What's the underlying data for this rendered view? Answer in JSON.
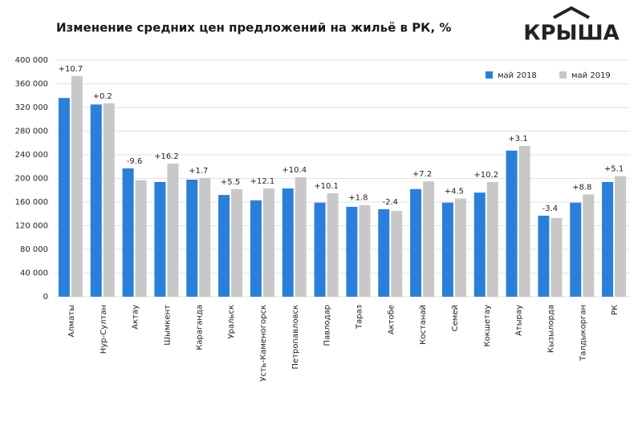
{
  "chart_data": {
    "type": "bar",
    "title": "Изменение средних цен предложений на жильё в РК, %",
    "logo": "КРЫША",
    "categories": [
      "Алматы",
      "Нур-Султан",
      "Актау",
      "Шымкент",
      "Караганда",
      "Уральск",
      "Усть-Каменогорск",
      "Петропавловск",
      "Павлодар",
      "Тараз",
      "Актобе",
      "Костанай",
      "Семей",
      "Кокшетау",
      "Атырау",
      "Кызылорда",
      "Талдыкорган",
      "РК"
    ],
    "series": [
      {
        "name": "май 2018",
        "color": "#2b7fd9",
        "values": [
          336000,
          325000,
          217000,
          194000,
          198000,
          172000,
          163000,
          183000,
          159000,
          152000,
          148000,
          182000,
          159000,
          176000,
          247000,
          137000,
          159000,
          194000
        ]
      },
      {
        "name": "май 2019",
        "color": "#c8c8c8",
        "values": [
          373000,
          327000,
          197000,
          225000,
          201000,
          182000,
          183000,
          202000,
          175000,
          155000,
          145000,
          195000,
          166000,
          194000,
          255000,
          133000,
          173000,
          204000
        ]
      }
    ],
    "annotations": [
      {
        "text": "+10.7",
        "color": "#2a9d3c"
      },
      {
        "text": "+0.2",
        "color": "#2a9d3c"
      },
      {
        "text": "-9.6",
        "color": "#e02020"
      },
      {
        "text": "+16.2",
        "color": "#2a9d3c"
      },
      {
        "text": "+1.7",
        "color": "#2a9d3c"
      },
      {
        "text": "+5.5",
        "color": "#2a9d3c"
      },
      {
        "text": "+12.1",
        "color": "#2a9d3c"
      },
      {
        "text": "+10.4",
        "color": "#2a9d3c"
      },
      {
        "text": "+10.1",
        "color": "#2a9d3c"
      },
      {
        "text": "+1.8",
        "color": "#2a9d3c"
      },
      {
        "text": "-2.4",
        "color": "#e02020"
      },
      {
        "text": "+7.2",
        "color": "#2a9d3c"
      },
      {
        "text": "+4.5",
        "color": "#2a9d3c"
      },
      {
        "text": "+10.2",
        "color": "#2a9d3c"
      },
      {
        "text": "+3.1",
        "color": "#2a9d3c"
      },
      {
        "text": "-3.4",
        "color": "#e02020"
      },
      {
        "text": "+8.8",
        "color": "#2a9d3c"
      },
      {
        "text": "+5.1",
        "color": "#2a9d3c"
      }
    ],
    "ylim": [
      0,
      400000
    ],
    "yticks": [
      0,
      {
        "value": 40000,
        "label": "40 000"
      },
      {
        "value": 80000,
        "label": "80 000"
      },
      {
        "value": 120000,
        "label": "120 000"
      },
      {
        "value": 160000,
        "label": "160 000"
      },
      {
        "value": 200000,
        "label": "200 000"
      },
      {
        "value": 240000,
        "label": "240 000"
      },
      {
        "value": 280000,
        "label": "280 000"
      },
      {
        "value": 320000,
        "label": "320 000"
      },
      {
        "value": 360000,
        "label": "360 000"
      },
      {
        "value": 400000,
        "label": "400 000"
      }
    ],
    "grid": true,
    "legend": "top-right"
  }
}
